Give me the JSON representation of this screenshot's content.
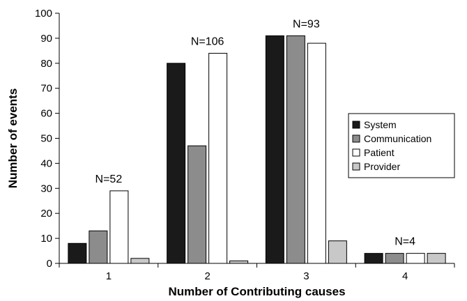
{
  "chart_data": {
    "type": "bar",
    "xlabel": "Number of Contributing causes",
    "ylabel": "Number of events",
    "categories": [
      "1",
      "2",
      "3",
      "4"
    ],
    "ylim": [
      0,
      100
    ],
    "yticks": [
      "0",
      "10",
      "20",
      "30",
      "40",
      "50",
      "60",
      "70",
      "80",
      "90",
      "100"
    ],
    "grid": false,
    "legend_position": "right",
    "series": [
      {
        "name": "System",
        "color": "#1a1a1a",
        "values": [
          8,
          80,
          91,
          4
        ]
      },
      {
        "name": "Communication",
        "color": "#8c8c8c",
        "values": [
          13,
          47,
          91,
          4
        ]
      },
      {
        "name": "Patient",
        "color": "#ffffff",
        "values": [
          29,
          84,
          88,
          4
        ]
      },
      {
        "name": "Provider",
        "color": "#c8c8c8",
        "values": [
          2,
          1,
          9,
          4
        ]
      }
    ],
    "annotations": [
      "N=52",
      "N=106",
      "N=93",
      "N=4"
    ]
  }
}
